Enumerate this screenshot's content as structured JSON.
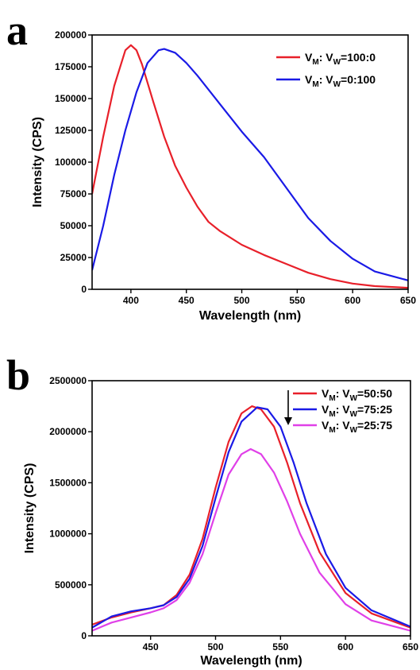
{
  "chart_data": [
    {
      "panel_label": "a",
      "type": "line",
      "xlabel": "Wavelength (nm)",
      "ylabel": "Intensity (CPS)",
      "xlim": [
        365,
        650
      ],
      "ylim": [
        0,
        200000
      ],
      "x_ticks": [
        400,
        450,
        500,
        550,
        600,
        650
      ],
      "y_ticks": [
        0,
        25000,
        50000,
        75000,
        100000,
        125000,
        150000,
        175000,
        200000
      ],
      "legend_position": "top-right",
      "series": [
        {
          "name_main": "V",
          "name_sub1": "M",
          "name_mid": ":  V",
          "name_sub2": "W",
          "name_tail": "=100:0",
          "color": "#e8202a",
          "x": [
            365,
            375,
            385,
            395,
            400,
            405,
            410,
            420,
            430,
            440,
            450,
            460,
            470,
            480,
            500,
            520,
            540,
            560,
            580,
            600,
            620,
            650
          ],
          "y": [
            75000,
            120000,
            160000,
            188000,
            192000,
            188000,
            177000,
            148000,
            120000,
            97000,
            80000,
            65000,
            53000,
            46000,
            35000,
            27000,
            20000,
            13000,
            8000,
            4500,
            2500,
            1200
          ]
        },
        {
          "name_main": "V",
          "name_sub1": "M",
          "name_mid": ":  V",
          "name_sub2": "W",
          "name_tail": "=0:100",
          "color": "#1a1ae6",
          "x": [
            365,
            375,
            385,
            395,
            405,
            415,
            425,
            430,
            440,
            450,
            460,
            480,
            500,
            520,
            540,
            560,
            580,
            600,
            620,
            650
          ],
          "y": [
            15000,
            50000,
            90000,
            125000,
            155000,
            178000,
            188000,
            189000,
            186000,
            178000,
            168000,
            146000,
            124000,
            104000,
            80000,
            56000,
            38000,
            24000,
            14000,
            7000
          ]
        }
      ]
    },
    {
      "panel_label": "b",
      "type": "line",
      "xlabel": "Wavelength (nm)",
      "ylabel": "Intensity (CPS)",
      "xlim": [
        405,
        650
      ],
      "ylim": [
        0,
        2500000
      ],
      "x_ticks": [
        450,
        500,
        550,
        600,
        650
      ],
      "y_ticks": [
        0,
        500000,
        1000000,
        1500000,
        2000000,
        2500000
      ],
      "legend_position": "top-right",
      "series": [
        {
          "name_main": "V",
          "name_sub1": "M",
          "name_mid": ":  V",
          "name_sub2": "W",
          "name_tail": "=50:50",
          "color": "#e8202a",
          "x": [
            405,
            420,
            435,
            450,
            460,
            470,
            480,
            490,
            500,
            510,
            520,
            528,
            535,
            545,
            555,
            565,
            580,
            600,
            620,
            650
          ],
          "y": [
            110000,
            180000,
            230000,
            270000,
            300000,
            400000,
            600000,
            950000,
            1450000,
            1900000,
            2180000,
            2250000,
            2220000,
            2050000,
            1700000,
            1300000,
            820000,
            420000,
            220000,
            80000
          ]
        },
        {
          "name_main": "V",
          "name_sub1": "M",
          "name_mid": ":  V",
          "name_sub2": "W",
          "name_tail": "=75:25",
          "color": "#1a1ae6",
          "x": [
            405,
            420,
            435,
            450,
            460,
            470,
            480,
            490,
            500,
            510,
            520,
            532,
            540,
            550,
            560,
            570,
            585,
            600,
            620,
            650
          ],
          "y": [
            80000,
            190000,
            240000,
            270000,
            300000,
            380000,
            560000,
            880000,
            1350000,
            1800000,
            2100000,
            2240000,
            2220000,
            2050000,
            1700000,
            1300000,
            800000,
            470000,
            250000,
            90000
          ]
        },
        {
          "name_main": "V",
          "name_sub1": "M",
          "name_mid": ":  V",
          "name_sub2": "W",
          "name_tail": "=25:75",
          "color": "#e040e8",
          "x": [
            405,
            420,
            435,
            450,
            460,
            470,
            480,
            490,
            500,
            510,
            520,
            527,
            535,
            545,
            555,
            565,
            580,
            600,
            620,
            650
          ],
          "y": [
            50000,
            130000,
            180000,
            230000,
            270000,
            350000,
            520000,
            800000,
            1200000,
            1580000,
            1780000,
            1830000,
            1780000,
            1600000,
            1320000,
            1000000,
            620000,
            310000,
            150000,
            50000
          ]
        }
      ]
    }
  ]
}
